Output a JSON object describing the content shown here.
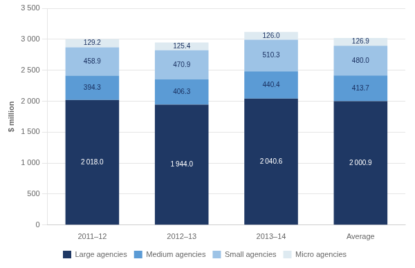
{
  "chart_data": {
    "type": "bar",
    "stacked": true,
    "ylabel": "$ million",
    "categories": [
      "2011–12",
      "2012–13",
      "2013–14",
      "Average"
    ],
    "series": [
      {
        "name": "Large agencies",
        "color": "#1F3864",
        "values": [
          2018.0,
          1944.0,
          2040.6,
          2000.9
        ],
        "value_labels": [
          "2 018.0",
          "1 944.0",
          "2 040.6",
          "2 000.9"
        ]
      },
      {
        "name": "Medium agencies",
        "color": "#5B9BD5",
        "values": [
          394.3,
          406.3,
          440.4,
          413.7
        ],
        "value_labels": [
          "394.3",
          "406.3",
          "440.4",
          "413.7"
        ]
      },
      {
        "name": "Small agencies",
        "color": "#9DC3E6",
        "values": [
          458.9,
          470.9,
          510.3,
          480.0
        ],
        "value_labels": [
          "458.9",
          "470.9",
          "510.3",
          "480.0"
        ]
      },
      {
        "name": "Micro agencies",
        "color": "#DEEAF1",
        "values": [
          129.2,
          125.4,
          126.0,
          126.9
        ],
        "value_labels": [
          "129.2",
          "125.4",
          "126.0",
          "126.9"
        ]
      }
    ],
    "ylim": [
      0,
      3500
    ],
    "yticks": [
      0,
      500,
      {
        "value": 1000,
        "label": "1 000"
      },
      {
        "value": 1500,
        "label": "1 500"
      },
      {
        "value": 2000,
        "label": "2 000"
      },
      {
        "value": 2500,
        "label": "2 500"
      },
      {
        "value": 3000,
        "label": "3 000"
      },
      {
        "value": 3500,
        "label": "3 500"
      }
    ],
    "grid": true,
    "legend": "bottom",
    "data_labels": true
  }
}
